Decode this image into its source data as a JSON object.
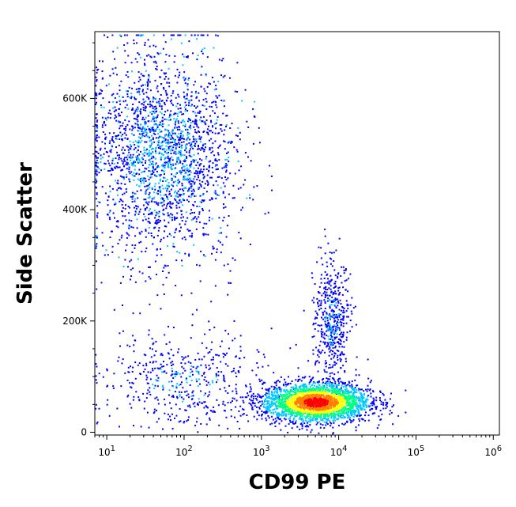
{
  "chart_data": {
    "type": "scatter",
    "subtype": "flow-cytometry density dot plot",
    "xlabel": "CD99 PE",
    "ylabel": "Side Scatter",
    "x_scale": "log",
    "xlim": [
      7,
      1200000
    ],
    "ylim": [
      -5000,
      720000
    ],
    "x_ticks": [
      {
        "value": 10,
        "base": "10",
        "exp": "1"
      },
      {
        "value": 100,
        "base": "10",
        "exp": "2"
      },
      {
        "value": 1000,
        "base": "10",
        "exp": "3"
      },
      {
        "value": 10000,
        "base": "10",
        "exp": "4"
      },
      {
        "value": 100000,
        "base": "10",
        "exp": "5"
      },
      {
        "value": 1000000,
        "base": "10",
        "exp": "6"
      }
    ],
    "y_ticks": [
      {
        "value": 0,
        "label": "0"
      },
      {
        "value": 200000,
        "label": "200K"
      },
      {
        "value": 400000,
        "label": "400K"
      },
      {
        "value": 600000,
        "label": "600K"
      }
    ],
    "grid": false,
    "density_colors": [
      "#0000ff",
      "#00c8ff",
      "#00ff80",
      "#ffff00",
      "#ff8000",
      "#ff0000"
    ],
    "populations": [
      {
        "x_center": 50,
        "y_center": 500000,
        "x_spread_decades": 0.48,
        "y_spread": 95000,
        "density": "medium"
      },
      {
        "x_center": 5000,
        "y_center": 55000,
        "x_spread_decades": 0.35,
        "y_spread": 18000,
        "density": "high"
      },
      {
        "x_center": 8000,
        "y_center": 200000,
        "x_spread_decades": 0.12,
        "y_spread": 55000,
        "density": "low"
      },
      {
        "x_center": 100,
        "y_center": 90000,
        "x_spread_decades": 0.55,
        "y_spread": 45000,
        "density": "low"
      }
    ]
  }
}
